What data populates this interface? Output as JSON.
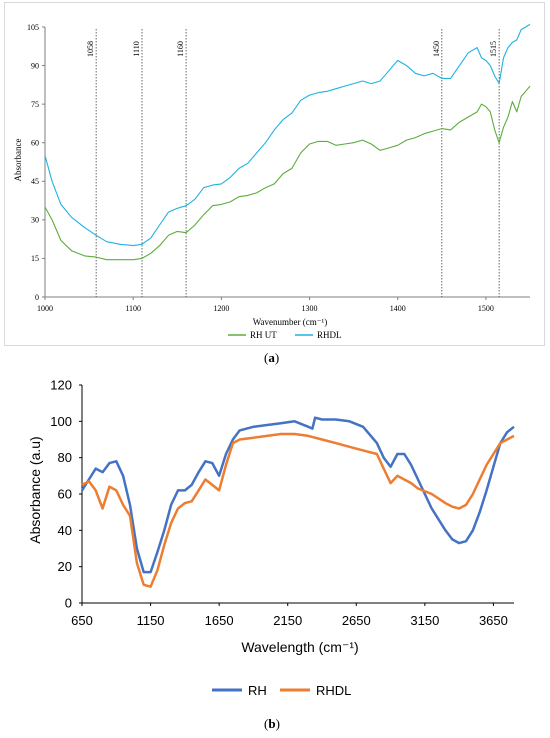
{
  "chart_data": [
    {
      "type": "line",
      "panel_label": "a",
      "xlabel": "Wavenumber (cm⁻¹)",
      "ylabel": "Absorbance",
      "xlim": [
        1000,
        1550
      ],
      "ylim": [
        0,
        105
      ],
      "x_ticks": [
        1000,
        1100,
        1200,
        1300,
        1400,
        1500
      ],
      "y_ticks": [
        0,
        15,
        30,
        45,
        60,
        75,
        90,
        105
      ],
      "grid": false,
      "legend_position": "bottom",
      "annotations": [
        {
          "label": "1058",
          "x": 1058
        },
        {
          "label": "1110",
          "x": 1110
        },
        {
          "label": "1160",
          "x": 1160
        },
        {
          "label": "1450",
          "x": 1450
        },
        {
          "label": "1515",
          "x": 1515
        }
      ],
      "series": [
        {
          "name": "RH UT",
          "color": "#5cad3c",
          "x": [
            1000,
            1008,
            1018,
            1030,
            1045,
            1058,
            1070,
            1085,
            1100,
            1110,
            1120,
            1130,
            1140,
            1150,
            1160,
            1170,
            1180,
            1190,
            1200,
            1210,
            1220,
            1230,
            1240,
            1250,
            1260,
            1270,
            1280,
            1290,
            1300,
            1310,
            1320,
            1330,
            1340,
            1350,
            1360,
            1370,
            1380,
            1390,
            1400,
            1410,
            1420,
            1430,
            1440,
            1450,
            1460,
            1470,
            1480,
            1490,
            1495,
            1500,
            1505,
            1510,
            1515,
            1520,
            1525,
            1530,
            1535,
            1540,
            1545,
            1550
          ],
          "y": [
            35,
            30,
            22,
            18,
            16,
            15.5,
            14.5,
            14.5,
            14.5,
            15,
            17,
            20,
            24,
            25.5,
            25,
            28,
            32,
            35.5,
            36,
            37,
            39,
            39.5,
            40.5,
            42.5,
            44,
            48,
            50,
            56,
            59.5,
            60.5,
            60.5,
            59,
            59.5,
            60,
            61,
            59.5,
            57,
            58,
            59,
            61,
            62,
            63.5,
            64.5,
            65.5,
            65,
            68,
            70,
            72,
            75,
            74,
            72,
            65,
            60,
            66,
            70,
            76,
            72,
            78,
            80,
            82
          ]
        },
        {
          "name": "RHDL",
          "color": "#1fb2e3",
          "x": [
            1000,
            1008,
            1018,
            1030,
            1045,
            1058,
            1070,
            1085,
            1100,
            1110,
            1120,
            1130,
            1140,
            1150,
            1160,
            1170,
            1180,
            1190,
            1200,
            1210,
            1220,
            1230,
            1240,
            1250,
            1260,
            1270,
            1280,
            1290,
            1300,
            1310,
            1320,
            1330,
            1340,
            1350,
            1360,
            1370,
            1380,
            1390,
            1400,
            1410,
            1420,
            1430,
            1440,
            1450,
            1460,
            1470,
            1480,
            1490,
            1495,
            1500,
            1505,
            1510,
            1515,
            1520,
            1525,
            1530,
            1535,
            1540,
            1545,
            1550
          ],
          "y": [
            55,
            45,
            36,
            31,
            27,
            24,
            21.5,
            20.5,
            20,
            20.5,
            23,
            28,
            33,
            34.5,
            35.5,
            38,
            42.5,
            43.5,
            44,
            46.5,
            50,
            52,
            56,
            60,
            65,
            69,
            71.5,
            76.5,
            78.5,
            79.5,
            80,
            81,
            82,
            83,
            84,
            83,
            84,
            88,
            92,
            90,
            87,
            86,
            87,
            85,
            85,
            90,
            95,
            97,
            93,
            92,
            90,
            86,
            83,
            93,
            97,
            99,
            100,
            104,
            105,
            106
          ]
        }
      ]
    },
    {
      "type": "line",
      "panel_label": "b",
      "xlabel": "Wavelength (cm⁻¹)",
      "ylabel": "Absorbance (a.u)",
      "xlim": [
        650,
        3800
      ],
      "ylim": [
        0,
        120
      ],
      "x_ticks": [
        650,
        1150,
        1650,
        2150,
        2650,
        3150,
        3650
      ],
      "y_ticks": [
        0,
        20,
        40,
        60,
        80,
        100,
        120
      ],
      "grid": false,
      "legend_position": "bottom",
      "series": [
        {
          "name": "RH",
          "color": "#4472c4",
          "x": [
            650,
            700,
            750,
            800,
            850,
            900,
            950,
            1000,
            1050,
            1100,
            1150,
            1200,
            1250,
            1300,
            1350,
            1400,
            1450,
            1500,
            1550,
            1600,
            1650,
            1700,
            1750,
            1800,
            1900,
            2000,
            2100,
            2200,
            2300,
            2330,
            2350,
            2400,
            2500,
            2600,
            2700,
            2800,
            2850,
            2900,
            2950,
            3000,
            3050,
            3100,
            3200,
            3300,
            3350,
            3400,
            3450,
            3500,
            3550,
            3600,
            3650,
            3700,
            3750,
            3800
          ],
          "y": [
            62,
            68,
            74,
            72,
            77,
            78,
            70,
            54,
            30,
            17,
            17,
            28,
            40,
            54,
            62,
            62,
            65,
            72,
            78,
            77,
            70,
            82,
            90,
            95,
            97,
            98,
            99,
            100,
            97,
            96,
            102,
            101,
            101,
            100,
            97,
            88,
            80,
            75,
            82,
            82,
            76,
            68,
            52,
            40,
            35,
            33,
            34,
            40,
            50,
            62,
            75,
            88,
            94,
            97
          ]
        },
        {
          "name": "RHDL",
          "color": "#ed7d31",
          "x": [
            650,
            700,
            750,
            800,
            850,
            900,
            950,
            1000,
            1050,
            1100,
            1150,
            1200,
            1250,
            1300,
            1350,
            1400,
            1450,
            1500,
            1550,
            1600,
            1650,
            1700,
            1750,
            1800,
            1900,
            2000,
            2100,
            2200,
            2300,
            2400,
            2500,
            2600,
            2700,
            2800,
            2850,
            2900,
            2950,
            3000,
            3050,
            3100,
            3200,
            3300,
            3350,
            3400,
            3450,
            3500,
            3550,
            3600,
            3650,
            3700,
            3750,
            3800
          ],
          "y": [
            65,
            67,
            62,
            52,
            64,
            62,
            54,
            48,
            22,
            10,
            9,
            18,
            32,
            44,
            52,
            55,
            56,
            62,
            68,
            65,
            62,
            76,
            88,
            90,
            91,
            92,
            93,
            93,
            92,
            90,
            88,
            86,
            84,
            82,
            74,
            66,
            70,
            68,
            66,
            63,
            60,
            55,
            53,
            52,
            54,
            60,
            68,
            76,
            82,
            88,
            90,
            92
          ]
        }
      ]
    }
  ]
}
